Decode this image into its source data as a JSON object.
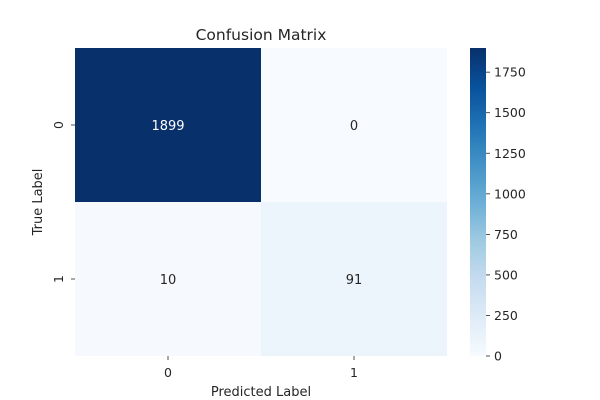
{
  "chart_data": {
    "type": "heatmap",
    "title": "Confusion Matrix",
    "xlabel": "Predicted Label",
    "ylabel": "True Label",
    "x_categories": [
      "0",
      "1"
    ],
    "y_categories": [
      "0",
      "1"
    ],
    "matrix": [
      [
        1899,
        0
      ],
      [
        10,
        91
      ]
    ],
    "cell_labels": [
      [
        "1899",
        "0"
      ],
      [
        "10",
        "91"
      ]
    ],
    "colorscale": {
      "name": "Blues",
      "low_color": "#f7fbff",
      "high_color": "#08306b"
    },
    "colorbar": {
      "min": 0,
      "max": 1899,
      "ticks": [
        0,
        250,
        500,
        750,
        1000,
        1250,
        1500,
        1750
      ],
      "tick_labels": [
        "0",
        "250",
        "500",
        "750",
        "1000",
        "1250",
        "1500",
        "1750"
      ]
    }
  }
}
